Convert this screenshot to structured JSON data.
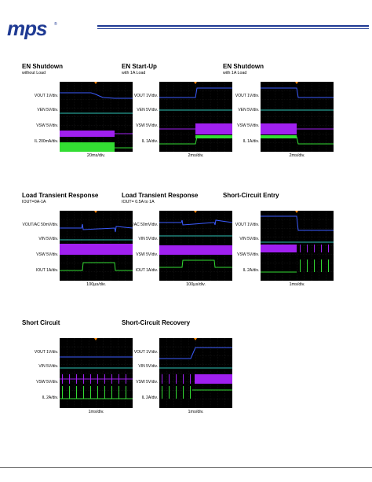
{
  "brand": {
    "logo_text": "mps",
    "color": "#1f3a93"
  },
  "panels": [
    {
      "title": "EN Shutdown",
      "subtitle": "without Load",
      "labels": [
        "VOUT 1V/div.",
        "VEN 5V/div.",
        "VSW 5V/div.",
        "IL 200mA/div."
      ],
      "xlabel": "20ms/div."
    },
    {
      "title": "EN Start-Up",
      "subtitle": "with 1A Load",
      "labels": [
        "VOUT 1V/div.",
        "VEN 5V/div.",
        "VSW 5V/div.",
        "IL 1A/div."
      ],
      "xlabel": "2ms/div."
    },
    {
      "title": "EN Shutdown",
      "subtitle": "with 1A Load",
      "labels": [
        "VOUT 1V/div.",
        "VEN 5V/div.",
        "VSW 5V/div.",
        "IL 1A/div."
      ],
      "xlabel": "2ms/div."
    },
    {
      "title": "Load Transient Response",
      "subtitle": "IOUT=0A-1A",
      "labels": [
        "VOUT/AC 50mV/div.",
        "VIN 5V/div.",
        "VSW 5V/div.",
        "IOUT 1A/div."
      ],
      "xlabel": "100µs/div."
    },
    {
      "title": "Load Transient Response",
      "subtitle": "IOUT= 0.5A to 1A",
      "labels": [
        "VOUT/AC 50mV/div.",
        "VIN 5V/div.",
        "VSW 5V/div.",
        "IOUT 1A/div."
      ],
      "xlabel": "100µs/div."
    },
    {
      "title": "Short-Circuit Entry",
      "subtitle": "",
      "labels": [
        "VOUT 1V/div.",
        "VIN 5V/div.",
        "VSW 5V/div.",
        "IL 2A/div."
      ],
      "xlabel": "1ms/div."
    },
    {
      "title": "Short Circuit",
      "subtitle": "",
      "labels": [
        "VOUT 1V/div.",
        "VIN 5V/div.",
        "VSW 5V/div.",
        "IL 2A/div."
      ],
      "xlabel": "1ms/div."
    },
    {
      "title": "Short-Circuit Recovery",
      "subtitle": "",
      "labels": [
        "VOUT 1V/div.",
        "VIN 5V/div.",
        "VSW 5V/div.",
        "IL 2A/div."
      ],
      "xlabel": "1ms/div."
    }
  ],
  "colors": {
    "vout": "#3b5bff",
    "vin": "#2ec4b6",
    "vsw": "#a020f0",
    "il": "#33dd33"
  }
}
